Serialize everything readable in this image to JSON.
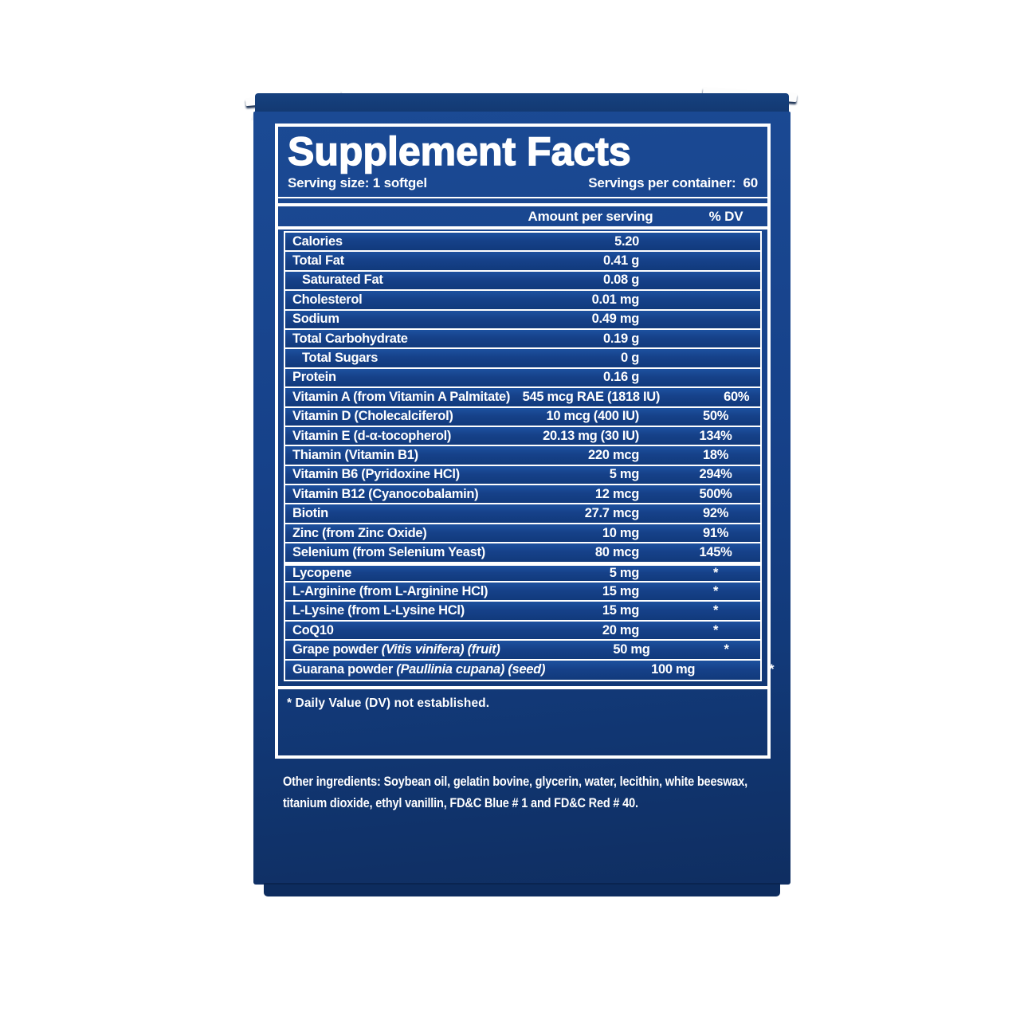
{
  "colors": {
    "panel_blue": "#164189",
    "panel_blue_dark": "#0f2e61",
    "row_blue": "#1d519f",
    "text_white": "#ffffff"
  },
  "header": {
    "title": "Supplement Facts",
    "serving_size": "Serving size: 1 softgel",
    "servings_per_container_label": "Servings per container:",
    "servings_per_container_value": "60"
  },
  "columns": {
    "amount": "Amount per serving",
    "dv": "% DV"
  },
  "table": {
    "rows": [
      {
        "name": "Calories",
        "amount": "5.20",
        "dv": ""
      },
      {
        "name": "Total Fat",
        "amount": "0.41 g",
        "dv": ""
      },
      {
        "name": "Saturated Fat",
        "amount": "0.08 g",
        "dv": "",
        "indent": true
      },
      {
        "name": "Cholesterol",
        "amount": "0.01 mg",
        "dv": ""
      },
      {
        "name": "Sodium",
        "amount": "0.49 mg",
        "dv": ""
      },
      {
        "name": "Total Carbohydrate",
        "amount": "0.19 g",
        "dv": ""
      },
      {
        "name": "Total Sugars",
        "amount": "0 g",
        "dv": "",
        "indent": true
      },
      {
        "name": "Protein",
        "amount": "0.16 g",
        "dv": ""
      },
      {
        "name": "Vitamin A (from Vitamin A Palmitate)",
        "amount": "545 mcg RAE (1818 IU)",
        "dv": "60%"
      },
      {
        "name": "Vitamin D (Cholecalciferol)",
        "amount": "10 mcg (400 IU)",
        "dv": "50%"
      },
      {
        "name": "Vitamin E (d-α-tocopherol)",
        "amount": "20.13 mg (30 IU)",
        "dv": "134%"
      },
      {
        "name": "Thiamin (Vitamin B1)",
        "amount": "220 mcg",
        "dv": "18%"
      },
      {
        "name": "Vitamin B6 (Pyridoxine HCl)",
        "amount": "5 mg",
        "dv": "294%"
      },
      {
        "name": "Vitamin B12 (Cyanocobalamin)",
        "amount": "12 mcg",
        "dv": "500%"
      },
      {
        "name": "Biotin",
        "amount": "27.7 mcg",
        "dv": "92%"
      },
      {
        "name": "Zinc (from Zinc Oxide)",
        "amount": "10 mg",
        "dv": "91%"
      },
      {
        "name": "Selenium (from Selenium Yeast)",
        "amount": "80 mcg",
        "dv": "145%"
      },
      {
        "name": "Lycopene",
        "amount": "5 mg",
        "dv": "*",
        "group_start": true
      },
      {
        "name": "L-Arginine (from L-Arginine HCl)",
        "amount": "15 mg",
        "dv": "*"
      },
      {
        "name": "L-Lysine (from L-Lysine HCl)",
        "amount": "15 mg",
        "dv": "*"
      },
      {
        "name": "CoQ10",
        "amount": "20 mg",
        "dv": "*"
      },
      {
        "name": "Grape powder ",
        "name_italic": "(Vitis vinifera) (fruit)",
        "amount": "50 mg",
        "dv": "*"
      },
      {
        "name": "Guarana powder ",
        "name_italic": "(Paullinia cupana) (seed)",
        "amount": "100 mg",
        "dv": "*"
      }
    ]
  },
  "footnote": "* Daily Value (DV) not established.",
  "other_ingredients": "Other ingredients: Soybean oil, gelatin bovine, glycerin, water, lecithin, white beeswax, titanium dioxide, ethyl vanillin, FD&C Blue # 1 and FD&C Red # 40."
}
